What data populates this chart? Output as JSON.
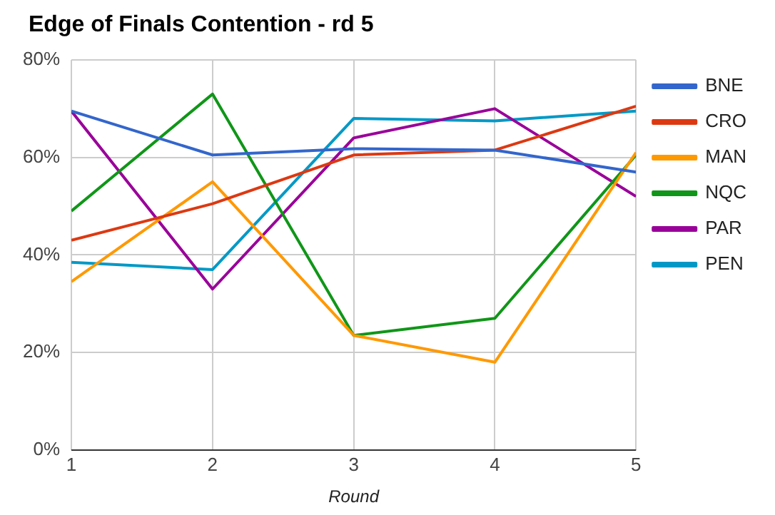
{
  "chart_data": {
    "type": "line",
    "title": "Edge of Finals Contention - rd 5",
    "xlabel": "Round",
    "x": [
      1,
      2,
      3,
      4,
      5
    ],
    "xlim": [
      1,
      5
    ],
    "xticks": [
      1,
      2,
      3,
      4,
      5
    ],
    "ylim": [
      0,
      80
    ],
    "yticks": [
      {
        "value": 0,
        "label": "0%"
      },
      {
        "value": 20,
        "label": "20%"
      },
      {
        "value": 40,
        "label": "40%"
      },
      {
        "value": 60,
        "label": "60%"
      },
      {
        "value": 80,
        "label": "80%"
      }
    ],
    "grid": true,
    "legend": "right",
    "marker": "none",
    "line_style": "solid",
    "series": [
      {
        "name": "BNE",
        "color": "#3366cc",
        "values": [
          69.5,
          60.5,
          61.8,
          61.5,
          57
        ]
      },
      {
        "name": "CRO",
        "color": "#dc3912",
        "values": [
          43,
          50.5,
          60.5,
          61.5,
          70.5
        ]
      },
      {
        "name": "MAN",
        "color": "#ff9900",
        "values": [
          34.5,
          55,
          23.5,
          18,
          61
        ]
      },
      {
        "name": "NQC",
        "color": "#109618",
        "values": [
          49,
          73,
          23.5,
          27,
          60.5
        ]
      },
      {
        "name": "PAR",
        "color": "#990099",
        "values": [
          69.5,
          33,
          64,
          70,
          52
        ]
      },
      {
        "name": "PEN",
        "color": "#0099c6",
        "values": [
          38.5,
          37,
          68,
          67.5,
          69.5
        ]
      }
    ]
  }
}
